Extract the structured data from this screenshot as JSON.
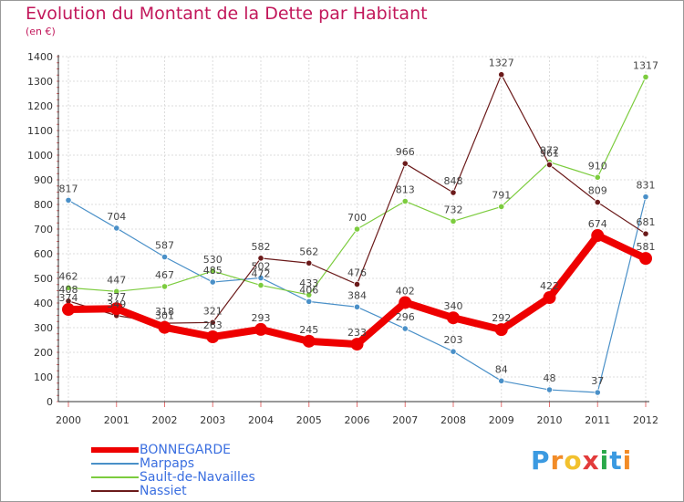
{
  "title": "Evolution du Montant de la Dette par Habitant",
  "subtitle": "(en €)",
  "logo": {
    "text": "Proxiti",
    "colors": [
      "#3b9ae1",
      "#f28c28",
      "#f2c12e",
      "#e23b3b",
      "#2aa84a",
      "#3b9ae1",
      "#f28c28"
    ]
  },
  "chart_data": {
    "type": "line",
    "x": [
      "2000",
      "2001",
      "2002",
      "2003",
      "2004",
      "2005",
      "2006",
      "2007",
      "2008",
      "2009",
      "2010",
      "2011",
      "2012"
    ],
    "ylim": [
      0,
      1400
    ],
    "yticks": [
      0,
      100,
      200,
      300,
      400,
      500,
      600,
      700,
      800,
      900,
      1000,
      1100,
      1200,
      1300,
      1400
    ],
    "grid": true,
    "legend_position": "bottom-left",
    "series": [
      {
        "name": "BONNEGARDE",
        "color": "#ee0000",
        "values": [
          374,
          377,
          301,
          263,
          293,
          245,
          233,
          402,
          340,
          292,
          422,
          674,
          581
        ]
      },
      {
        "name": "Marpaps",
        "color": "#4a90c8",
        "values": [
          817,
          704,
          587,
          485,
          502,
          406,
          384,
          296,
          203,
          84,
          48,
          37,
          831
        ]
      },
      {
        "name": "Sault-de-Navailles",
        "color": "#7ccc3e",
        "values": [
          462,
          447,
          467,
          530,
          472,
          433,
          700,
          813,
          732,
          791,
          972,
          910,
          1317
        ]
      },
      {
        "name": "Nassiet",
        "color": "#6b1a1a",
        "values": [
          408,
          349,
          318,
          321,
          582,
          562,
          476,
          966,
          848,
          1327,
          961,
          809,
          681
        ]
      }
    ]
  }
}
